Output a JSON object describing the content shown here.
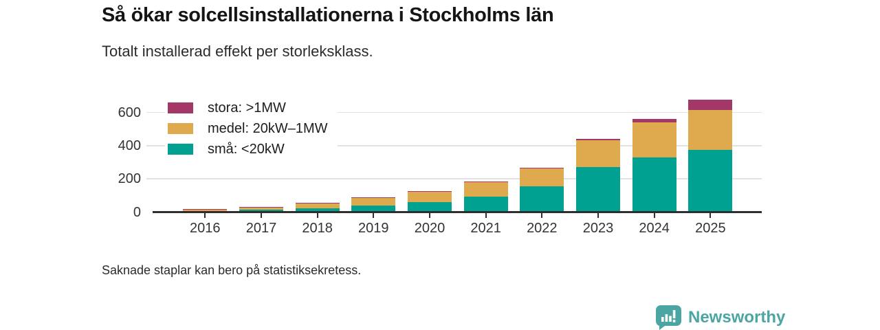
{
  "header": {
    "title": "Så ökar solcellsinstallationerna i Stockholms län",
    "subtitle": "Totalt installerad effekt per storleksklass."
  },
  "footer": {
    "note": "Saknade staplar kan bero på statistiksekretess."
  },
  "branding": {
    "name": "Newsworthy",
    "color": "#4ba6a3",
    "logo_icon": "speech-bubble-bar-chart-icon"
  },
  "chart_data": {
    "type": "bar",
    "stacked": true,
    "title": "Så ökar solcellsinstallationerna i Stockholms län",
    "subtitle": "Totalt installerad effekt per storleksklass.",
    "xlabel": "",
    "ylabel": "",
    "categories": [
      "2016",
      "2017",
      "2018",
      "2019",
      "2020",
      "2021",
      "2022",
      "2023",
      "2024",
      "2025"
    ],
    "series": [
      {
        "name": "stora: >1MW",
        "color": "#a23768",
        "values": [
          1,
          2,
          3,
          3,
          3,
          3,
          5,
          9,
          24,
          62
        ]
      },
      {
        "name": "medel: 20kW–1MW",
        "color": "#dfa94e",
        "values": [
          12,
          16,
          28,
          44,
          63,
          85,
          110,
          160,
          208,
          242
        ]
      },
      {
        "name": "små: <20kW",
        "color": "#00a191",
        "values": [
          6,
          13,
          24,
          40,
          62,
          95,
          154,
          273,
          331,
          374
        ]
      }
    ],
    "stack_order_bottom_to_top": [
      "små: <20kW",
      "medel: 20kW–1MW",
      "stora: >1MW"
    ],
    "yticks": [
      0,
      200,
      400,
      600
    ],
    "ylim": [
      0,
      700
    ],
    "grid": "horizontal",
    "legend_position": "top-left",
    "axis_color": "#2e2e2e",
    "grid_color": "#e2e2e2"
  }
}
